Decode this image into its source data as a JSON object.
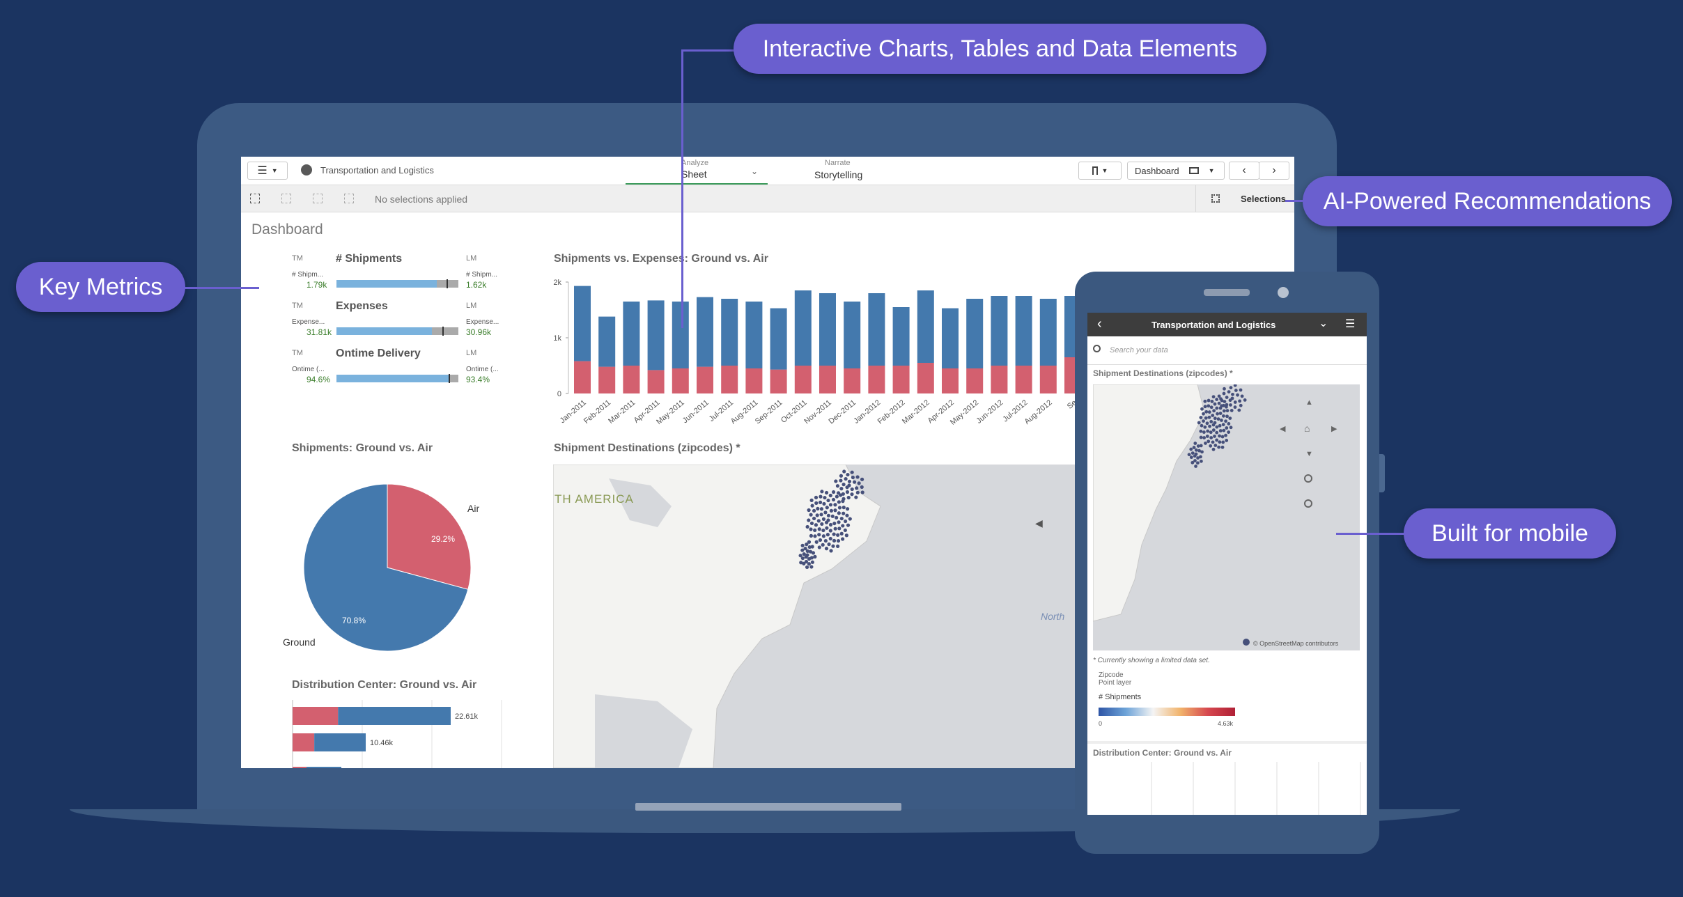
{
  "callouts": {
    "interactive": "Interactive Charts, Tables and Data Elements",
    "ai": "AI-Powered Recommendations",
    "key_metrics": "Key Metrics",
    "mobile": "Built for mobile"
  },
  "app": {
    "title": "Transportation and Logistics",
    "analyze_label": "Analyze",
    "sheet_label": "Sheet",
    "narrate_label": "Narrate",
    "storytelling_label": "Storytelling",
    "dashboard_label": "Dashboard",
    "no_selections": "No selections applied",
    "selections_label": "Selections",
    "sheet_title": "Dashboard"
  },
  "kpis": [
    {
      "left_tag": "TM",
      "left_sub": "# Shipm...",
      "left_val": "1.79k",
      "head": "# Shipments",
      "right_tag": "LM",
      "right_sub": "# Shipm...",
      "right_val": "1.62k",
      "fill": 0.82,
      "mark": 0.9
    },
    {
      "left_tag": "TM",
      "left_sub": "Expense...",
      "left_val": "31.81k",
      "head": "Expenses",
      "right_tag": "LM",
      "right_sub": "Expense...",
      "right_val": "30.96k",
      "fill": 0.78,
      "mark": 0.87
    },
    {
      "left_tag": "TM",
      "left_sub": "Ontime (...",
      "left_val": "94.6%",
      "head": "Ontime Delivery",
      "right_tag": "LM",
      "right_sub": "Ontime (...",
      "right_val": "93.4%",
      "fill": 0.93,
      "mark": 0.92
    }
  ],
  "charts": {
    "bar_title": "Shipments vs. Expenses: Ground vs. Air",
    "pie_title": "Shipments: Ground vs. Air",
    "map_title": "Shipment Destinations (zipcodes) *",
    "dist_title": "Distribution Center: Ground vs. Air",
    "map_region_label": "TH AMERICA",
    "map_north_label": "North"
  },
  "chart_data": [
    {
      "type": "bar",
      "title": "Shipments vs. Expenses: Ground vs. Air",
      "categories": [
        "Jan-2011",
        "Feb-2011",
        "Mar-2011",
        "Apr-2011",
        "May-2011",
        "Jun-2011",
        "Jul-2011",
        "Aug-2011",
        "Sep-2011",
        "Oct-2011",
        "Nov-2011",
        "Dec-2011",
        "Jan-2012",
        "Feb-2012",
        "Mar-2012",
        "Apr-2012",
        "May-2012",
        "Jun-2012",
        "Jul-2012",
        "Aug-2012",
        "Se"
      ],
      "series": [
        {
          "values": [
            1.35,
            0.9,
            1.15,
            1.25,
            1.2,
            1.25,
            1.2,
            1.2,
            1.1,
            1.35,
            1.3,
            1.2,
            1.3,
            1.05,
            1.3,
            1.08,
            1.25,
            1.25,
            1.25,
            1.2,
            1.1
          ]
        },
        {
          "values": [
            0.58,
            0.48,
            0.5,
            0.42,
            0.45,
            0.48,
            0.5,
            0.45,
            0.43,
            0.5,
            0.5,
            0.45,
            0.5,
            0.5,
            0.55,
            0.45,
            0.45,
            0.5,
            0.5,
            0.5,
            0.65
          ]
        }
      ],
      "y_ticks": [
        "0",
        "1k",
        "2k"
      ],
      "ylim": [
        0,
        2
      ]
    },
    {
      "type": "pie",
      "title": "Shipments: Ground vs. Air",
      "labels": [
        "Air",
        "Ground"
      ],
      "values": [
        29.2,
        70.8
      ],
      "value_labels": [
        "29.2%",
        "70.8%"
      ]
    },
    {
      "type": "bar",
      "title": "Distribution Center: Ground vs. Air",
      "orientation": "horizontal",
      "rows": [
        {
          "air": 6.5,
          "ground": 16.11,
          "label": "22.61k"
        },
        {
          "air": 3.1,
          "ground": 7.36,
          "label": "10.46k"
        }
      ]
    }
  ],
  "mobile": {
    "title": "Transportation and Logistics",
    "search_placeholder": "Search your data",
    "map_title": "Shipment Destinations (zipcodes) *",
    "attribution": "© OpenStreetMap contributors",
    "note": "* Currently showing a limited data set.",
    "legend_layer1": "Zipcode",
    "legend_layer2": "Point layer",
    "legend_measure": "# Shipments",
    "legend_min": "0",
    "legend_max": "4.63k",
    "dist_title": "Distribution Center: Ground vs. Air"
  },
  "colors": {
    "ground": "#4479ad",
    "air": "#d3606f",
    "accent": "#6a5fcf"
  }
}
